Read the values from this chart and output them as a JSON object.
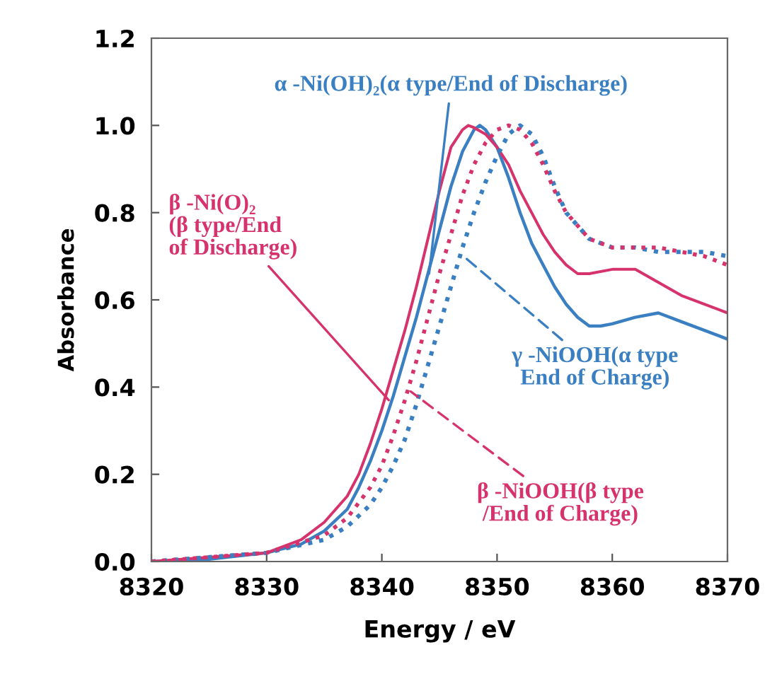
{
  "chart_data": {
    "type": "line",
    "xlabel": "Energy / eV",
    "ylabel": "Absorbance",
    "xlim": [
      8320,
      8370
    ],
    "xticks": [
      8320,
      8330,
      8340,
      8350,
      8360,
      8370
    ],
    "ylim": [
      0,
      1.2
    ],
    "yticks": [
      {
        "value": 0,
        "label": "0.0"
      },
      {
        "value": 0.2,
        "label": "0.2"
      },
      {
        "value": 0.4,
        "label": "0.4"
      },
      {
        "value": 0.6,
        "label": "0.6"
      },
      {
        "value": 0.8,
        "label": "0.8"
      },
      {
        "value": 1.0,
        "label": "1.0"
      },
      {
        "value": 1.2,
        "label": "1.2"
      }
    ],
    "grid": false,
    "legend": false,
    "marker": "none",
    "series": [
      {
        "color": "#3a7fc1",
        "line_style": "solid",
        "x": [
          8320,
          8325,
          8330,
          8333,
          8335,
          8337,
          8338,
          8339,
          8340,
          8341,
          8342,
          8343,
          8344,
          8345,
          8346,
          8347,
          8348,
          8348.5,
          8349,
          8350,
          8351,
          8352,
          8353,
          8354,
          8355,
          8356,
          8357,
          8358,
          8359,
          8360,
          8362,
          8364,
          8366,
          8368,
          8370
        ],
        "values": [
          0.0,
          0.005,
          0.02,
          0.04,
          0.07,
          0.12,
          0.17,
          0.23,
          0.3,
          0.38,
          0.47,
          0.56,
          0.66,
          0.76,
          0.86,
          0.94,
          0.99,
          1.0,
          0.99,
          0.95,
          0.88,
          0.8,
          0.73,
          0.68,
          0.63,
          0.59,
          0.56,
          0.54,
          0.54,
          0.545,
          0.56,
          0.57,
          0.55,
          0.53,
          0.51
        ]
      },
      {
        "color": "#d6336c",
        "line_style": "solid",
        "x": [
          8320,
          8330,
          8333,
          8335,
          8337,
          8338,
          8339,
          8340,
          8341,
          8342,
          8343,
          8344,
          8345,
          8346,
          8347,
          8347.5,
          8348,
          8349,
          8350,
          8351,
          8352,
          8353,
          8354,
          8355,
          8356,
          8357,
          8358,
          8360,
          8362,
          8364,
          8366,
          8368,
          8370
        ],
        "values": [
          0.0,
          0.02,
          0.05,
          0.09,
          0.15,
          0.2,
          0.27,
          0.35,
          0.44,
          0.53,
          0.63,
          0.74,
          0.85,
          0.95,
          0.99,
          1.0,
          0.995,
          0.98,
          0.95,
          0.91,
          0.85,
          0.8,
          0.75,
          0.71,
          0.68,
          0.66,
          0.66,
          0.67,
          0.67,
          0.64,
          0.61,
          0.59,
          0.57
        ]
      },
      {
        "color": "#3a7fc1",
        "line_style": "dotted",
        "x": [
          8320,
          8330,
          8335,
          8337,
          8339,
          8340,
          8341,
          8342,
          8343,
          8344,
          8345,
          8346,
          8347,
          8348,
          8349,
          8350,
          8351,
          8352,
          8353,
          8354,
          8355,
          8356,
          8357,
          8358,
          8360,
          8362,
          8364,
          8366,
          8368,
          8370
        ],
        "values": [
          0.0,
          0.02,
          0.05,
          0.08,
          0.13,
          0.17,
          0.22,
          0.28,
          0.36,
          0.45,
          0.54,
          0.63,
          0.72,
          0.8,
          0.87,
          0.93,
          0.98,
          1.0,
          0.98,
          0.93,
          0.86,
          0.8,
          0.77,
          0.74,
          0.72,
          0.72,
          0.71,
          0.71,
          0.71,
          0.7
        ]
      },
      {
        "color": "#d6336c",
        "line_style": "dotted",
        "x": [
          8320,
          8330,
          8335,
          8337,
          8339,
          8340,
          8341,
          8342,
          8343,
          8344,
          8345,
          8346,
          8347,
          8348,
          8349,
          8350,
          8351,
          8352,
          8353,
          8354,
          8355,
          8356,
          8357,
          8358,
          8360,
          8362,
          8364,
          8366,
          8368,
          8370
        ],
        "values": [
          0.0,
          0.02,
          0.06,
          0.1,
          0.17,
          0.22,
          0.29,
          0.37,
          0.46,
          0.56,
          0.66,
          0.75,
          0.84,
          0.91,
          0.96,
          0.99,
          1.0,
          0.99,
          0.96,
          0.91,
          0.85,
          0.8,
          0.77,
          0.74,
          0.72,
          0.72,
          0.72,
          0.71,
          0.7,
          0.68
        ]
      }
    ],
    "annotations": [
      {
        "text": "α -Ni(OH)₂(α type/End of Discharge)",
        "x": 8344.1,
        "y": 0.66
      },
      {
        "text": "β -Ni(O)₂\n(β type/End\nof Discharge)",
        "x": 8340.6,
        "y": 0.37
      },
      {
        "text": "γ -NiOOH(α type\nEnd of Charge)",
        "x": 8347.1,
        "y": 0.7
      },
      {
        "text": "β -NiOOH(β type\n/End of Charge)",
        "x": 8342.5,
        "y": 0.39
      }
    ]
  }
}
